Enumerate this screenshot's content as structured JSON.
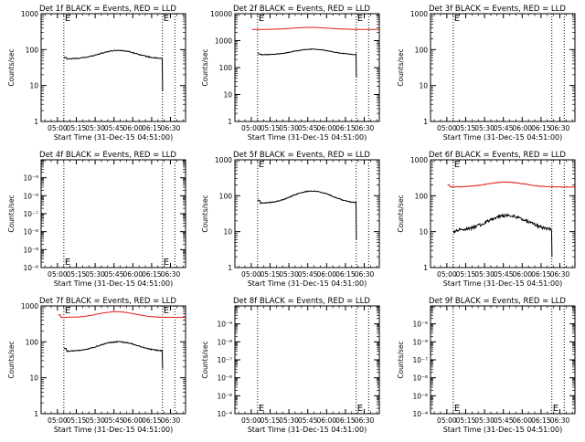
{
  "chart_data": [
    {
      "id": "det1f",
      "type": "line",
      "title": "Det 1f BLACK = Events, RED = LLD",
      "ylabel": "Counts/sec",
      "xlabel": "Start Time (31-Dec-15 04:51:00)",
      "yscale": "log",
      "ylim": [
        1,
        1000
      ],
      "y_tick_labels": [
        "1",
        "10",
        "100",
        "1000"
      ],
      "x_tick_labels": [
        "05:00",
        "05:15",
        "05:30",
        "05:45",
        "06:00",
        "06:15",
        "06:30"
      ],
      "markers": [
        "E",
        "E"
      ],
      "series": [
        {
          "color": "#000000",
          "from": 5.1,
          "to": 83.6,
          "start": 60,
          "base": 55,
          "peak": 95,
          "peak_at": 48.5,
          "width": 19,
          "noise": 0.03,
          "end_drop": 7
        }
      ]
    },
    {
      "id": "det2f",
      "type": "line",
      "title": "Det 2f BLACK = Events, RED = LLD",
      "ylabel": "Counts/sec",
      "xlabel": "Start Time (31-Dec-15 04:51:00)",
      "yscale": "log",
      "ylim": [
        1,
        10000
      ],
      "y_tick_labels": [
        "1",
        "10",
        "100",
        "1000",
        "10000"
      ],
      "x_tick_labels": [
        "05:00",
        "05:15",
        "05:30",
        "05:45",
        "06:00",
        "06:15",
        "06:30"
      ],
      "markers": [
        "E",
        "E"
      ],
      "series": [
        {
          "color": "#dd1f1f",
          "from": 0.5,
          "to": 103.0,
          "start": 2600,
          "base": 2600,
          "peak": 3100,
          "peak_at": 47,
          "width": 20,
          "noise": 0.006,
          "end_drop": null
        },
        {
          "color": "#000000",
          "from": 5.1,
          "to": 83.6,
          "start": 330,
          "base": 300,
          "peak": 480,
          "peak_at": 48.5,
          "width": 19,
          "noise": 0.03,
          "end_drop": 45
        }
      ]
    },
    {
      "id": "det3f",
      "type": "line",
      "title": "Det 3f BLACK = Events, RED = LLD",
      "ylabel": "Counts/sec",
      "xlabel": "Start Time (31-Dec-15 04:51:00)",
      "yscale": "log",
      "ylim": [
        1,
        1000
      ],
      "y_tick_labels": [
        "1",
        "10",
        "100",
        "1000"
      ],
      "x_tick_labels": [
        "05:00",
        "05:15",
        "05:30",
        "05:45",
        "06:00",
        "06:15",
        "06:30"
      ],
      "markers": [
        "E"
      ],
      "series": []
    },
    {
      "id": "det4f",
      "type": "line",
      "title": "Det 4f BLACK = Events, RED = LLD",
      "ylabel": "Counts/sec",
      "xlabel": "Start Time (31-Dec-15 04:51:00)",
      "yscale": "log",
      "ylim": [
        1e-10,
        0.0001
      ],
      "y_tick_labels": [
        "10⁻⁶",
        "10⁻⁸",
        "10⁻⁶",
        "10⁻⁷",
        "10⁻⁹",
        "10⁻⁹"
      ],
      "x_tick_labels": [
        "05:00",
        "05:15",
        "05:30",
        "05:45",
        "06:00",
        "06:15",
        "06:30"
      ],
      "markers": [
        "E",
        "E"
      ],
      "series": []
    },
    {
      "id": "det5f",
      "type": "line",
      "title": "Det 5f BLACK = Events, RED = LLD",
      "ylabel": "Counts/sec",
      "xlabel": "Start Time (31-Dec-15 04:51:00)",
      "yscale": "log",
      "ylim": [
        1,
        1000
      ],
      "y_tick_labels": [
        "1",
        "10",
        "100",
        "1000"
      ],
      "x_tick_labels": [
        "05:00",
        "05:15",
        "05:30",
        "05:45",
        "06:00",
        "06:15",
        "06:30"
      ],
      "markers": [
        "E"
      ],
      "series": [
        {
          "color": "#000000",
          "from": 5.1,
          "to": 83.6,
          "start": 75,
          "base": 62,
          "peak": 135,
          "peak_at": 48.5,
          "width": 19,
          "noise": 0.03,
          "end_drop": 6
        }
      ]
    },
    {
      "id": "det6f",
      "type": "line",
      "title": "Det 6f BLACK = Events, RED = LLD",
      "ylabel": "Counts/sec",
      "xlabel": "Start Time (31-Dec-15 04:51:00)",
      "yscale": "log",
      "ylim": [
        1,
        1000
      ],
      "y_tick_labels": [
        "1",
        "10",
        "100",
        "1000"
      ],
      "x_tick_labels": [
        "05:00",
        "05:15",
        "05:30",
        "05:45",
        "06:00",
        "06:15",
        "06:30"
      ],
      "markers": [
        "E"
      ],
      "series": [
        {
          "color": "#dd1f1f",
          "from": 0.5,
          "to": 103.0,
          "start": 200,
          "base": 175,
          "peak": 240,
          "peak_at": 47,
          "width": 20,
          "noise": 0.02,
          "end_drop": null
        },
        {
          "color": "#000000",
          "from": 5.1,
          "to": 83.6,
          "start": 10,
          "base": 11,
          "peak": 28,
          "peak_at": 48.5,
          "width": 19,
          "noise": 0.09,
          "end_drop": 2
        }
      ]
    },
    {
      "id": "det7f",
      "type": "line",
      "title": "Det 7f BLACK = Events, RED = LLD",
      "ylabel": "Counts/sec",
      "xlabel": "Start Time (31-Dec-15 04:51:00)",
      "yscale": "log",
      "ylim": [
        1,
        1000
      ],
      "y_tick_labels": [
        "1",
        "10",
        "100",
        "1000"
      ],
      "x_tick_labels": [
        "05:00",
        "05:15",
        "05:30",
        "05:45",
        "06:00",
        "06:15",
        "06:30"
      ],
      "markers": [
        "E",
        "E"
      ],
      "series": [
        {
          "color": "#dd1f1f",
          "from": 0.5,
          "to": 103.0,
          "start": 560,
          "base": 480,
          "peak": 690,
          "peak_at": 47,
          "width": 19,
          "noise": 0.01,
          "end_drop": null
        },
        {
          "color": "#000000",
          "from": 5.1,
          "to": 83.6,
          "start": 65,
          "base": 55,
          "peak": 100,
          "peak_at": 48.5,
          "width": 19,
          "noise": 0.03,
          "end_drop": 18
        }
      ]
    },
    {
      "id": "det8f",
      "type": "line",
      "title": "Det 8f BLACK = Events, RED = LLD",
      "ylabel": "Counts/sec",
      "xlabel": "Start Time (31-Dec-15 04:51:00)",
      "yscale": "log",
      "ylim": [
        1e-10,
        0.0001
      ],
      "y_tick_labels": [
        "10⁻⁴",
        "10⁻⁶",
        "10⁻⁶",
        "10⁻⁷",
        "10⁻⁸",
        "10⁻⁹"
      ],
      "x_tick_labels": [
        "05:00",
        "05:15",
        "05:30",
        "05:45",
        "06:00",
        "06:15",
        "06:30"
      ],
      "markers": [
        "E",
        "E"
      ],
      "series": []
    },
    {
      "id": "det9f",
      "type": "line",
      "title": "Det 9f BLACK = Events, RED = LLD",
      "ylabel": "Counts/sec",
      "xlabel": "Start Time (31-Dec-15 04:51:00)",
      "yscale": "log",
      "ylim": [
        1e-10,
        0.0001
      ],
      "y_tick_labels": [
        "10⁻⁴",
        "10⁻⁶",
        "10⁻⁶",
        "10⁻⁷",
        "10⁻⁸",
        "10⁻⁹"
      ],
      "x_tick_labels": [
        "05:00",
        "05:15",
        "05:30",
        "05:45",
        "06:00",
        "06:15",
        "06:30"
      ],
      "markers": [
        "E",
        "E"
      ],
      "series": []
    }
  ]
}
